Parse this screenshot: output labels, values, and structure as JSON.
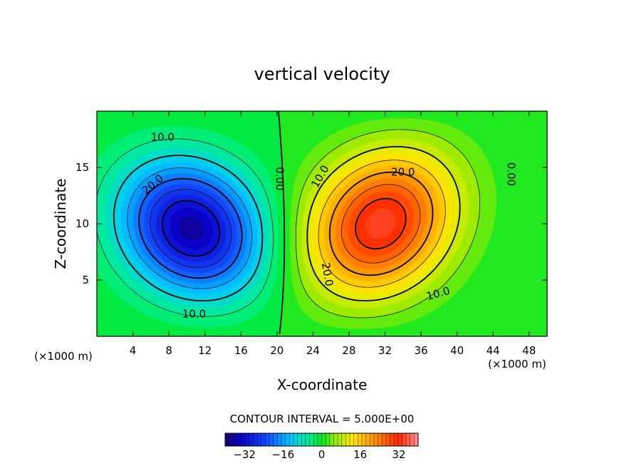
{
  "chart_data": {
    "type": "heatmap",
    "subtype": "filled-contour",
    "title": "vertical velocity",
    "xlabel": "X-coordinate",
    "ylabel": "Z-coordinate",
    "x_unit_left": "(×1000 m)",
    "x_unit_right": "(×1000 m)",
    "xlim": [
      0,
      50
    ],
    "ylim": [
      0,
      20
    ],
    "x_ticks": [
      4,
      8,
      12,
      16,
      20,
      24,
      28,
      32,
      36,
      40,
      44,
      48
    ],
    "x_tick_labels": [
      "4",
      "8",
      "12",
      "16",
      "20",
      "24",
      "28",
      "32",
      "36",
      "40",
      "44",
      "48"
    ],
    "y_ticks": [
      5,
      10,
      15
    ],
    "y_tick_labels": [
      "5",
      "10",
      "15"
    ],
    "contour_interval_text": "CONTOUR INTERVAL = 5.000E+00",
    "color_range": [
      -40,
      40
    ],
    "colorbar": {
      "ticks": [
        -32,
        -16,
        0,
        16,
        32
      ],
      "tick_labels": [
        "−32",
        "−16",
        "0",
        "16",
        "32"
      ]
    },
    "cells": {
      "downdraft": {
        "x": 10.5,
        "z": 9.5,
        "min": -36
      },
      "updraft": {
        "x": 31.5,
        "z": 10.0,
        "max": 34
      }
    },
    "contour_labels": [
      {
        "text": "10.0",
        "x": 7.3,
        "z": 17.7,
        "rot": 0
      },
      {
        "text": "20.0",
        "x": 6.2,
        "z": 13.5,
        "rot": -40
      },
      {
        "text": "10.0",
        "x": 10.8,
        "z": 2.0,
        "rot": 0
      },
      {
        "text": "0.00",
        "x": 20.3,
        "z": 14.0,
        "rot": 90
      },
      {
        "text": "10.0",
        "x": 24.8,
        "z": 14.2,
        "rot": -60
      },
      {
        "text": "20.0",
        "x": 34.0,
        "z": 14.6,
        "rot": 0
      },
      {
        "text": "20.0",
        "x": 25.6,
        "z": 5.5,
        "rot": 80
      },
      {
        "text": "10.0",
        "x": 37.9,
        "z": 3.8,
        "rot": -15
      },
      {
        "text": "0.00",
        "x": 46.0,
        "z": 14.4,
        "rot": 90
      }
    ]
  }
}
